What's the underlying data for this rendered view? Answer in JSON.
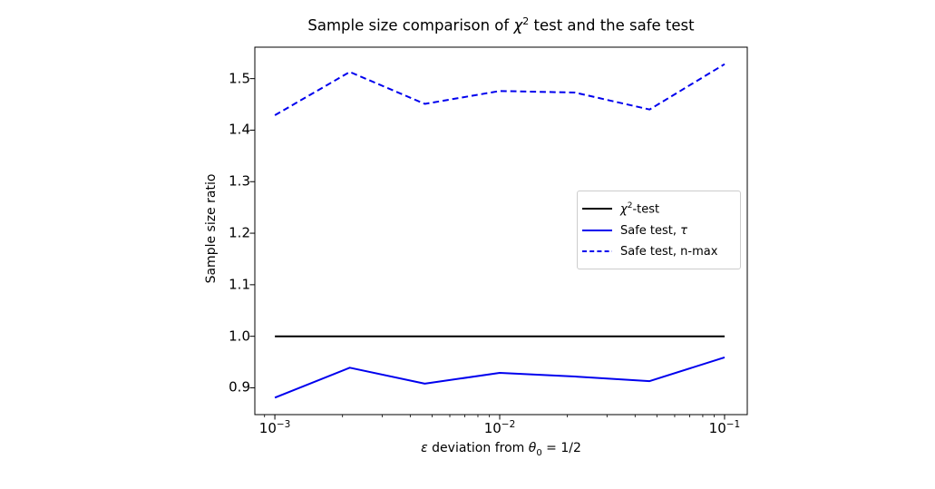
{
  "figure": {
    "title_parts": {
      "pre": "Sample size comparison of ",
      "chi": "χ",
      "chi_sup": "2",
      "post": " test and the safe test"
    },
    "xlabel_parts": {
      "epsilon": "ε",
      "mid": " deviation from ",
      "theta": "θ",
      "theta_sub": "0",
      "post": " = 1/2"
    },
    "ylabel": "Sample size ratio"
  },
  "legend": {
    "entries": [
      {
        "chi": "χ",
        "sup": "2",
        "post": "-test",
        "color": "#000000",
        "dash": "solid"
      },
      {
        "pre": "Safe test, ",
        "tau": "τ",
        "color": "#0000ee",
        "dash": "solid"
      },
      {
        "label": "Safe test, n-max",
        "color": "#0000ee",
        "dash": "dashed"
      }
    ]
  },
  "chart_data": {
    "type": "line",
    "title": "Sample size comparison of χ² test and the safe test",
    "xlabel": "ε deviation from θ₀ = 1/2",
    "ylabel": "Sample size ratio",
    "xscale": "log",
    "x": [
      0.001,
      0.002154,
      0.004642,
      0.01,
      0.021544,
      0.046416,
      0.1
    ],
    "series": [
      {
        "id": "chi2-test",
        "name": "χ²-test",
        "color": "#000000",
        "dash": "solid",
        "values": [
          1.0,
          1.0,
          1.0,
          1.0,
          1.0,
          1.0,
          1.0
        ]
      },
      {
        "id": "safe-test-tau",
        "name": "Safe test, τ",
        "color": "#0000ee",
        "dash": "solid",
        "values": [
          0.881,
          0.939,
          0.908,
          0.929,
          0.922,
          0.913,
          0.959
        ]
      },
      {
        "id": "safe-test-n-max",
        "name": "Safe test, n-max",
        "color": "#0000ee",
        "dash": "dashed",
        "values": [
          1.429,
          1.513,
          1.451,
          1.476,
          1.473,
          1.44,
          1.528
        ]
      }
    ],
    "xticks_major": [
      0.001,
      0.01,
      0.1
    ],
    "xtick_labels": [
      {
        "base": "10",
        "exp": "−3"
      },
      {
        "base": "10",
        "exp": "−2"
      },
      {
        "base": "10",
        "exp": "−1"
      }
    ],
    "yticks": [
      0.9,
      1.0,
      1.1,
      1.2,
      1.3,
      1.4,
      1.5
    ],
    "ytick_labels": [
      "0.9",
      "1.0",
      "1.1",
      "1.2",
      "1.3",
      "1.4",
      "1.5"
    ],
    "xlim_exp": [
      -3.089,
      -0.899
    ],
    "ylim": [
      0.848,
      1.561
    ],
    "grid": false,
    "legend_position": "center right"
  }
}
